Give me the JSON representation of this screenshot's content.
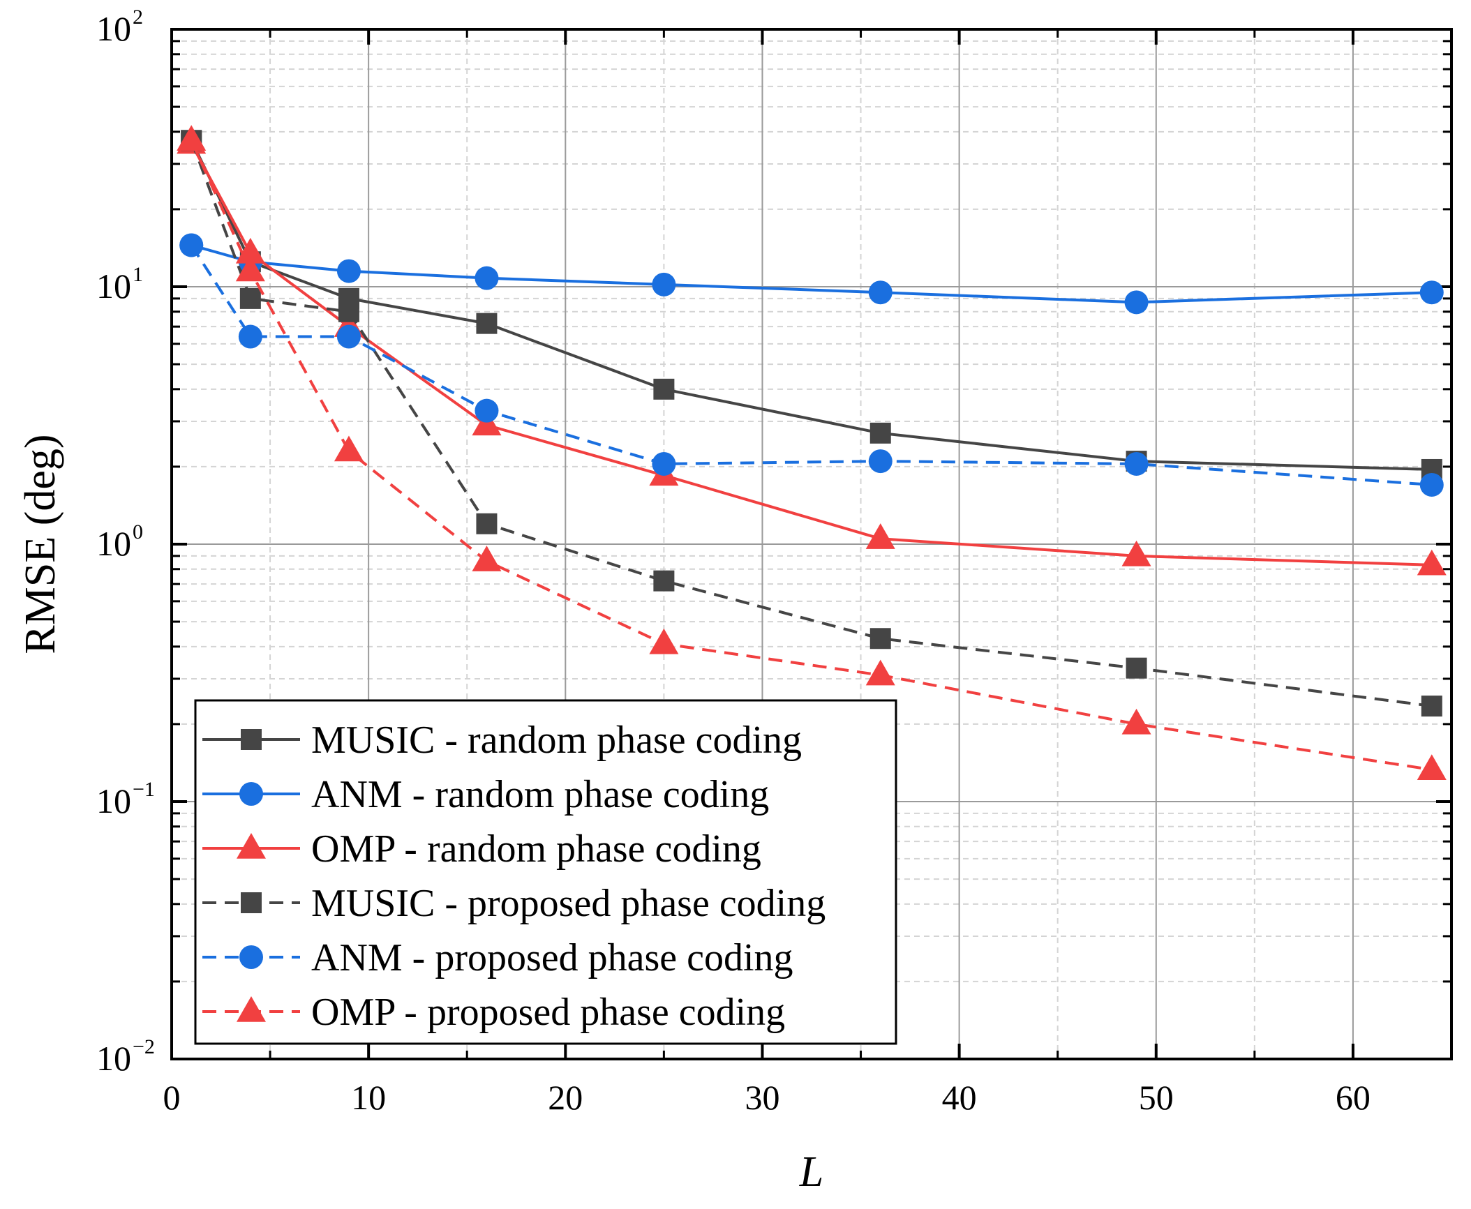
{
  "chart_data": {
    "type": "line",
    "title": "",
    "xlabel": "L",
    "ylabel": "RMSE (deg)",
    "yscale": "log",
    "xlim": [
      0,
      65
    ],
    "ylim": [
      0.01,
      100
    ],
    "grid": true,
    "legend_position": "lower-left",
    "x_ticks": [
      {
        "value": 0,
        "label": "0"
      },
      {
        "value": 10,
        "label": "10"
      },
      {
        "value": 20,
        "label": "20"
      },
      {
        "value": 30,
        "label": "30"
      },
      {
        "value": 40,
        "label": "40"
      },
      {
        "value": 50,
        "label": "50"
      },
      {
        "value": 60,
        "label": "60"
      }
    ],
    "y_ticks": [
      {
        "value": 100,
        "base": "10",
        "exp": "2"
      },
      {
        "value": 10,
        "base": "10",
        "exp": "1"
      },
      {
        "value": 1,
        "base": "10",
        "exp": "0"
      },
      {
        "value": 0.1,
        "base": "10",
        "exp": "−1"
      },
      {
        "value": 0.01,
        "base": "10",
        "exp": "−2"
      }
    ],
    "x": [
      1,
      4,
      9,
      16,
      25,
      36,
      49,
      64
    ],
    "series": [
      {
        "name": "MUSIC - random phase coding",
        "color": "#454545",
        "marker": "square",
        "dash": "solid",
        "values": [
          37,
          12.5,
          9,
          7.2,
          4.0,
          2.7,
          2.1,
          1.95
        ]
      },
      {
        "name": "ANM - random phase coding",
        "color": "#1a6fdf",
        "marker": "circle",
        "dash": "solid",
        "values": [
          14.5,
          12.5,
          11.5,
          10.8,
          10.2,
          9.5,
          8.7,
          9.5
        ]
      },
      {
        "name": "OMP - random phase coding",
        "color": "#f14040",
        "marker": "triangle",
        "dash": "solid",
        "values": [
          36,
          13.5,
          7.0,
          2.9,
          1.85,
          1.05,
          0.9,
          0.83
        ]
      },
      {
        "name": "MUSIC - proposed phase coding",
        "color": "#454545",
        "marker": "square",
        "dash": "dashed",
        "values": [
          37,
          9.0,
          8.0,
          1.2,
          0.72,
          0.43,
          0.33,
          0.235
        ]
      },
      {
        "name": "ANM - proposed phase coding",
        "color": "#1a6fdf",
        "marker": "circle",
        "dash": "dashed",
        "values": [
          14.5,
          6.4,
          6.4,
          3.3,
          2.05,
          2.1,
          2.05,
          1.7
        ]
      },
      {
        "name": "OMP - proposed phase coding",
        "color": "#f14040",
        "marker": "triangle",
        "dash": "dashed",
        "values": [
          37,
          11.5,
          2.3,
          0.86,
          0.41,
          0.31,
          0.2,
          0.133
        ]
      }
    ]
  }
}
